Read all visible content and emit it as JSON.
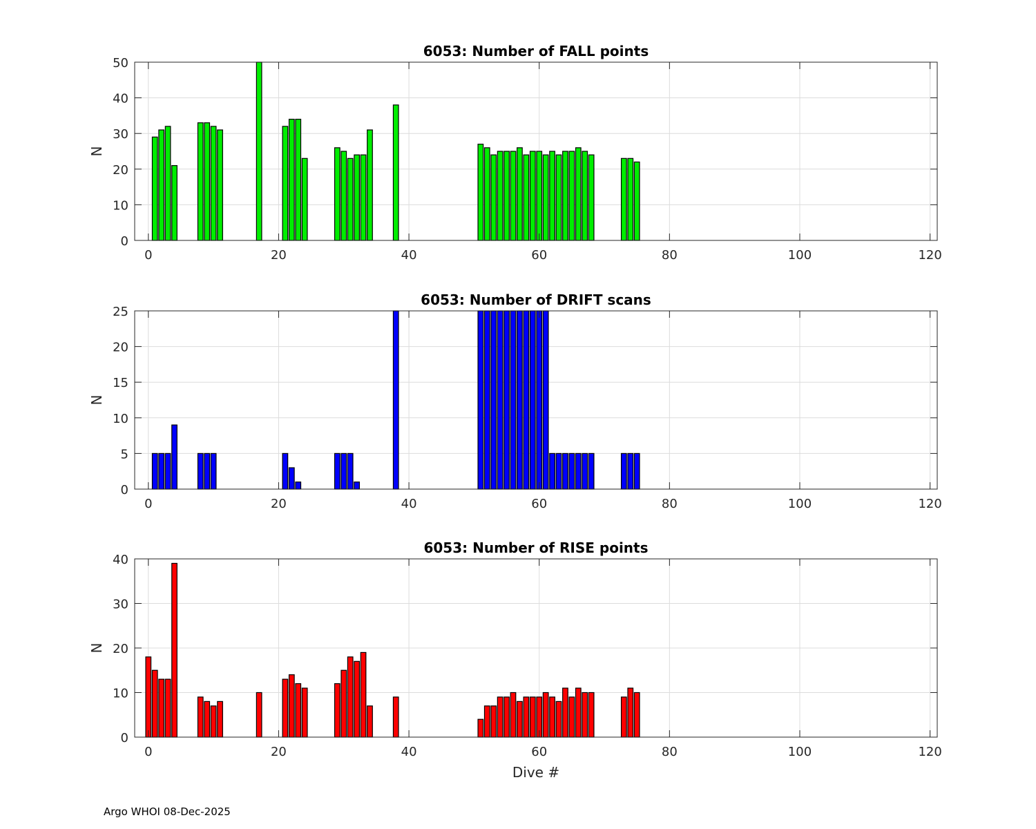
{
  "chart_data": [
    {
      "type": "bar",
      "title": "6053: Number of FALL points",
      "xlabel": "",
      "ylabel": "N",
      "xlim": [
        -2.1,
        121.1
      ],
      "ylim": [
        0,
        50
      ],
      "xticks": [
        0,
        20,
        40,
        60,
        80,
        100,
        120
      ],
      "yticks": [
        0,
        10,
        20,
        30,
        40,
        50
      ],
      "grid": true,
      "color": "#00ee00",
      "x": [
        1,
        2,
        3,
        4,
        8,
        9,
        10,
        11,
        17,
        21,
        22,
        23,
        24,
        29,
        30,
        31,
        32,
        33,
        34,
        38,
        51,
        52,
        53,
        54,
        55,
        56,
        57,
        58,
        59,
        60,
        61,
        62,
        63,
        64,
        65,
        66,
        67,
        68,
        73,
        74,
        75
      ],
      "values": [
        29,
        31,
        32,
        21,
        33,
        33,
        32,
        31,
        50,
        32,
        34,
        34,
        23,
        26,
        25,
        23,
        24,
        24,
        31,
        38,
        27,
        26,
        24,
        25,
        25,
        25,
        26,
        24,
        25,
        25,
        24,
        25,
        24,
        25,
        25,
        26,
        25,
        24,
        23,
        23,
        22
      ]
    },
    {
      "type": "bar",
      "title": "6053: Number of DRIFT scans",
      "xlabel": "",
      "ylabel": "N",
      "xlim": [
        -2.1,
        121.1
      ],
      "ylim": [
        0,
        25
      ],
      "xticks": [
        0,
        20,
        40,
        60,
        80,
        100,
        120
      ],
      "yticks": [
        0,
        5,
        10,
        15,
        20,
        25
      ],
      "grid": true,
      "color": "#0000ff",
      "x": [
        0,
        1,
        2,
        3,
        4,
        5,
        6,
        8,
        9,
        10,
        11,
        12,
        13,
        14,
        15,
        17,
        18,
        19,
        21,
        22,
        23,
        24,
        25,
        26,
        27,
        29,
        30,
        31,
        32,
        33,
        34,
        35,
        36,
        38,
        39,
        40,
        41,
        42,
        43,
        44,
        45,
        46,
        47,
        48,
        49,
        50,
        51,
        52,
        53,
        54,
        55,
        56,
        57,
        58,
        59,
        60,
        61,
        62,
        63,
        64,
        65,
        66,
        67,
        68,
        69,
        70,
        71,
        73,
        74,
        75,
        76,
        77,
        78,
        79,
        80,
        81,
        82,
        83,
        84,
        85,
        86,
        87,
        88,
        89,
        90,
        91,
        92,
        93,
        94,
        95,
        96,
        97,
        98,
        100,
        113,
        114,
        115,
        116,
        117,
        118,
        119
      ],
      "values": [
        0,
        5,
        5,
        5,
        9,
        0,
        0,
        5,
        5,
        5,
        0,
        0,
        0,
        0,
        0,
        0,
        0,
        0,
        5,
        3,
        1,
        0,
        0,
        0,
        0,
        5,
        5,
        5,
        1,
        0,
        0,
        0,
        0,
        25,
        0,
        0,
        0,
        0,
        0,
        0,
        0,
        0,
        0,
        0,
        0,
        0,
        25,
        25,
        25,
        25,
        25,
        25,
        25,
        25,
        25,
        25,
        25,
        5,
        5,
        5,
        5,
        5,
        5,
        5,
        0,
        0,
        0,
        5,
        5,
        5,
        0,
        0,
        0,
        0,
        0,
        0,
        0,
        0,
        0,
        0,
        0,
        0,
        0,
        0,
        0,
        0,
        0,
        0,
        0,
        0,
        0,
        0,
        0,
        0,
        0,
        0,
        0,
        0,
        0,
        0,
        0
      ]
    },
    {
      "type": "bar",
      "title": "6053: Number of RISE points",
      "xlabel": "Dive #",
      "ylabel": "N",
      "xlim": [
        -2.1,
        121.1
      ],
      "ylim": [
        0,
        40
      ],
      "xticks": [
        0,
        20,
        40,
        60,
        80,
        100,
        120
      ],
      "yticks": [
        0,
        10,
        20,
        30,
        40
      ],
      "grid": true,
      "color": "#ff0000",
      "x": [
        0,
        1,
        2,
        3,
        4,
        8,
        9,
        10,
        11,
        17,
        21,
        22,
        23,
        24,
        29,
        30,
        31,
        32,
        33,
        34,
        38,
        51,
        52,
        53,
        54,
        55,
        56,
        57,
        58,
        59,
        60,
        61,
        62,
        63,
        64,
        65,
        66,
        67,
        68,
        73,
        74,
        75
      ],
      "values": [
        18,
        15,
        13,
        13,
        39,
        9,
        8,
        7,
        8,
        10,
        13,
        14,
        12,
        11,
        12,
        15,
        18,
        17,
        19,
        7,
        9,
        4,
        7,
        7,
        9,
        9,
        10,
        8,
        9,
        9,
        9,
        10,
        9,
        8,
        11,
        9,
        11,
        10,
        10,
        9,
        11,
        10
      ]
    }
  ],
  "footer": "Argo WHOI 08-Dec-2025"
}
